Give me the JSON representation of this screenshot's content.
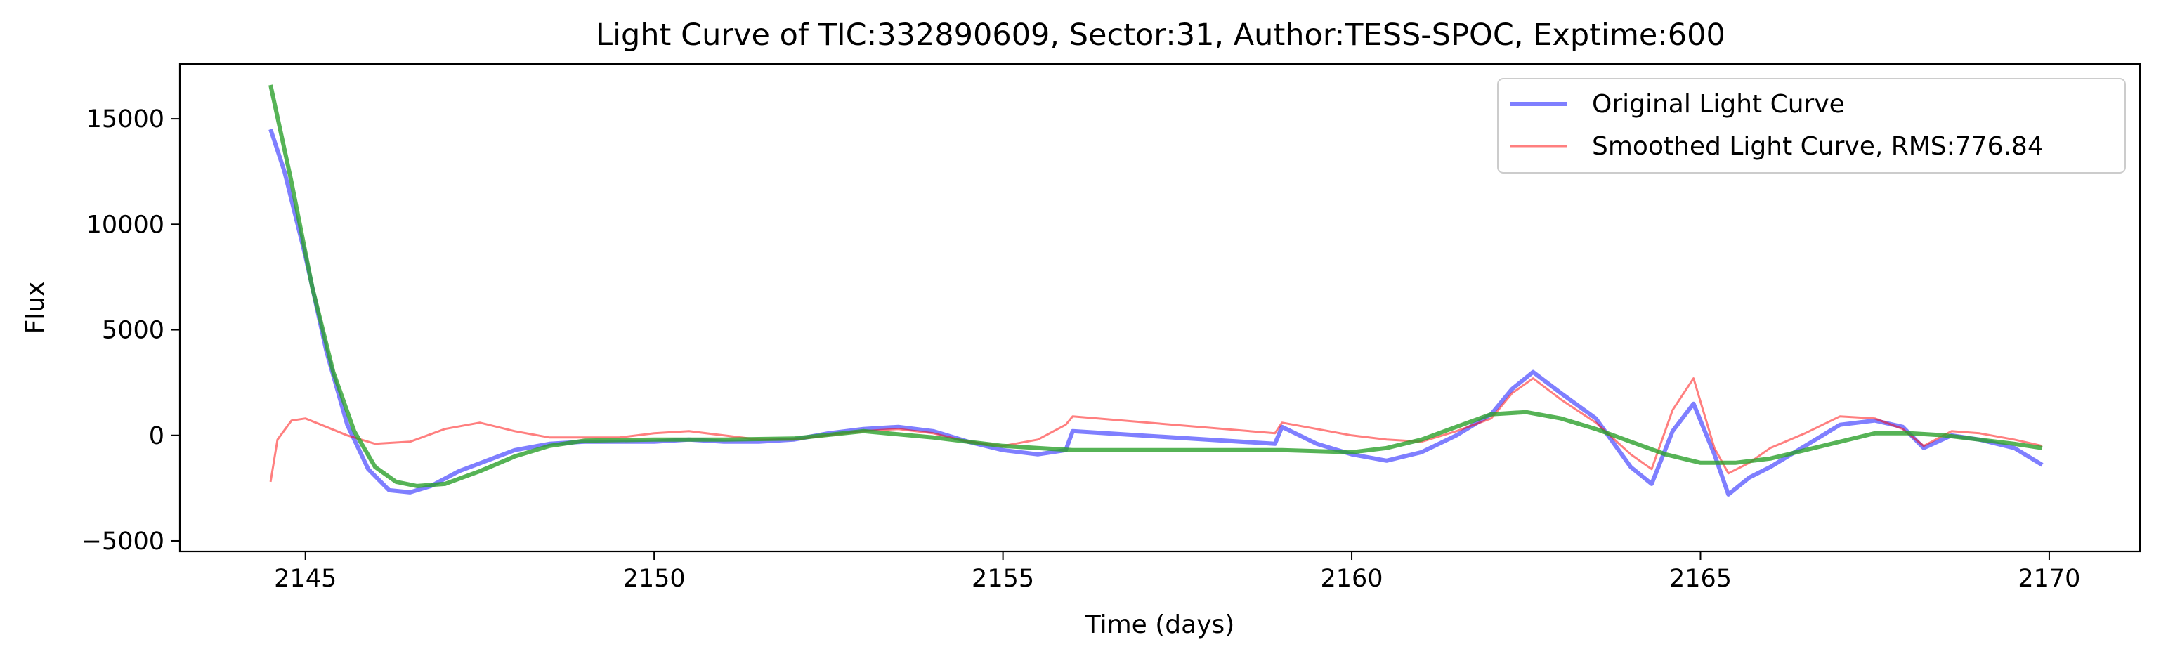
{
  "chart_data": {
    "type": "line",
    "title": "Light Curve of TIC:332890609, Sector:31, Author:TESS-SPOC, Exptime:600",
    "xlabel": "Time (days)",
    "ylabel": "Flux",
    "xlim": [
      2143.2,
      2171.3
    ],
    "ylim": [
      -5500,
      17600
    ],
    "xticks": [
      2145,
      2150,
      2155,
      2160,
      2165,
      2170
    ],
    "yticks": [
      -5000,
      0,
      5000,
      10000,
      15000
    ],
    "grid": false,
    "legend_position": "top-right",
    "series": [
      {
        "name": "Original Light Curve",
        "color": "#0000ff",
        "x": [
          2144.5,
          2144.7,
          2145.0,
          2145.3,
          2145.6,
          2145.9,
          2146.2,
          2146.5,
          2146.8,
          2147.2,
          2147.6,
          2148.0,
          2148.5,
          2149.0,
          2149.5,
          2150.0,
          2150.5,
          2151.0,
          2151.5,
          2152.0,
          2152.5,
          2153.0,
          2153.5,
          2154.0,
          2154.5,
          2155.0,
          2155.5,
          2155.9,
          2156.0,
          2158.9,
          2159.0,
          2159.5,
          2160.0,
          2160.5,
          2161.0,
          2161.5,
          2162.0,
          2162.3,
          2162.6,
          2163.0,
          2163.5,
          2164.0,
          2164.3,
          2164.6,
          2164.9,
          2165.2,
          2165.4,
          2165.7,
          2166.0,
          2166.5,
          2167.0,
          2167.5,
          2167.9,
          2168.2,
          2168.6,
          2169.0,
          2169.5,
          2169.9
        ],
        "y": [
          14500,
          12500,
          8500,
          4000,
          500,
          -1600,
          -2600,
          -2700,
          -2400,
          -1700,
          -1200,
          -700,
          -400,
          -300,
          -300,
          -300,
          -200,
          -300,
          -300,
          -200,
          100,
          300,
          400,
          200,
          -300,
          -700,
          -900,
          -700,
          200,
          -400,
          400,
          -400,
          -900,
          -1200,
          -800,
          0,
          1000,
          2200,
          3000,
          2000,
          800,
          -1500,
          -2300,
          200,
          1500,
          -900,
          -2800,
          -2000,
          -1500,
          -500,
          500,
          700,
          400,
          -600,
          0,
          -200,
          -600,
          -1400
        ]
      },
      {
        "name": "Smoothed Light Curve, RMS:776.84",
        "color": "#ff0000",
        "x": [
          2144.5,
          2144.6,
          2144.8,
          2145.0,
          2145.3,
          2145.6,
          2146.0,
          2146.5,
          2147.0,
          2147.5,
          2148.0,
          2148.5,
          2149.0,
          2149.5,
          2150.0,
          2150.5,
          2151.0,
          2151.5,
          2152.0,
          2152.5,
          2153.0,
          2153.5,
          2154.0,
          2154.5,
          2155.0,
          2155.5,
          2155.9,
          2156.0,
          2158.9,
          2159.0,
          2159.5,
          2160.0,
          2160.5,
          2161.0,
          2161.5,
          2162.0,
          2162.3,
          2162.6,
          2163.0,
          2163.5,
          2164.0,
          2164.3,
          2164.6,
          2164.9,
          2165.2,
          2165.4,
          2165.7,
          2166.0,
          2166.5,
          2167.0,
          2167.5,
          2167.9,
          2168.2,
          2168.6,
          2169.0,
          2169.5,
          2169.9
        ],
        "y": [
          -2200,
          -200,
          700,
          800,
          400,
          0,
          -400,
          -300,
          300,
          600,
          200,
          -100,
          -100,
          -100,
          100,
          200,
          0,
          -200,
          -200,
          0,
          200,
          300,
          100,
          -300,
          -500,
          -200,
          500,
          900,
          100,
          600,
          300,
          0,
          -200,
          -300,
          200,
          800,
          2000,
          2700,
          1700,
          600,
          -900,
          -1600,
          1200,
          2700,
          -600,
          -1800,
          -1300,
          -600,
          100,
          900,
          800,
          300,
          -500,
          200,
          100,
          -200,
          -500
        ]
      },
      {
        "name": "",
        "color": "#2ca02c",
        "x": [
          2144.5,
          2144.8,
          2145.1,
          2145.4,
          2145.7,
          2146.0,
          2146.3,
          2146.6,
          2147.0,
          2147.5,
          2148.0,
          2148.5,
          2149.0,
          2150.0,
          2151.0,
          2152.0,
          2153.0,
          2154.0,
          2155.0,
          2156.0,
          2157.0,
          2158.0,
          2159.0,
          2160.0,
          2160.5,
          2161.0,
          2161.5,
          2162.0,
          2162.5,
          2163.0,
          2163.5,
          2164.0,
          2164.5,
          2165.0,
          2165.5,
          2166.0,
          2166.5,
          2167.0,
          2167.5,
          2168.0,
          2168.5,
          2169.0,
          2169.5,
          2169.9
        ],
        "y": [
          16600,
          12000,
          7000,
          3000,
          200,
          -1500,
          -2200,
          -2400,
          -2300,
          -1700,
          -1000,
          -500,
          -250,
          -200,
          -200,
          -150,
          200,
          -100,
          -500,
          -700,
          -700,
          -700,
          -700,
          -800,
          -600,
          -200,
          400,
          1000,
          1100,
          800,
          300,
          -300,
          -900,
          -1300,
          -1300,
          -1100,
          -700,
          -300,
          100,
          100,
          0,
          -200,
          -400,
          -600
        ]
      }
    ]
  }
}
